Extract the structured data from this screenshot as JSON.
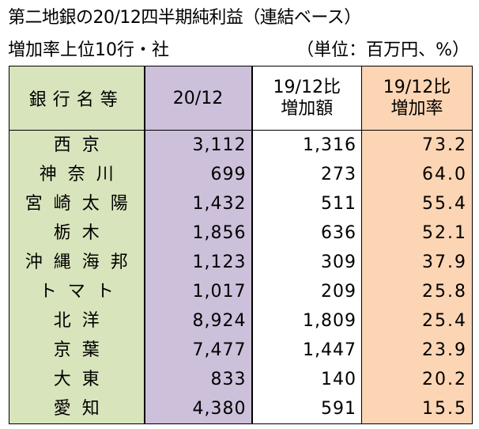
{
  "title": "第二地銀の20/12四半期純利益（連結ベース）",
  "subtitle": "増加率上位10行・社",
  "unit": "（単位：百万円、%）",
  "headers": {
    "bank": "銀行名等",
    "value": "20/12",
    "diff_line1": "19/12比",
    "diff_line2": "増加額",
    "rate_line1": "19/12比",
    "rate_line2": "増加率"
  },
  "rows": [
    {
      "bank": "西京",
      "value": "3,112",
      "diff": "1,316",
      "rate": "73.2"
    },
    {
      "bank": "神奈川",
      "value": "699",
      "diff": "273",
      "rate": "64.0"
    },
    {
      "bank": "宮崎太陽",
      "value": "1,432",
      "diff": "511",
      "rate": "55.4"
    },
    {
      "bank": "栃木",
      "value": "1,856",
      "diff": "636",
      "rate": "52.1"
    },
    {
      "bank": "沖縄海邦",
      "value": "1,123",
      "diff": "309",
      "rate": "37.9"
    },
    {
      "bank": "トマト",
      "value": "1,017",
      "diff": "209",
      "rate": "25.8"
    },
    {
      "bank": "北洋",
      "value": "8,924",
      "diff": "1,809",
      "rate": "25.4"
    },
    {
      "bank": "京葉",
      "value": "7,477",
      "diff": "1,447",
      "rate": "23.9"
    },
    {
      "bank": "大東",
      "value": "833",
      "diff": "140",
      "rate": "20.2"
    },
    {
      "bank": "愛知",
      "value": "4,380",
      "diff": "591",
      "rate": "15.5"
    }
  ],
  "colors": {
    "bank_column": "#d8e4bc",
    "value_column": "#ccc0da",
    "diff_column": "#ffffff",
    "rate_column": "#fcd5b4"
  }
}
